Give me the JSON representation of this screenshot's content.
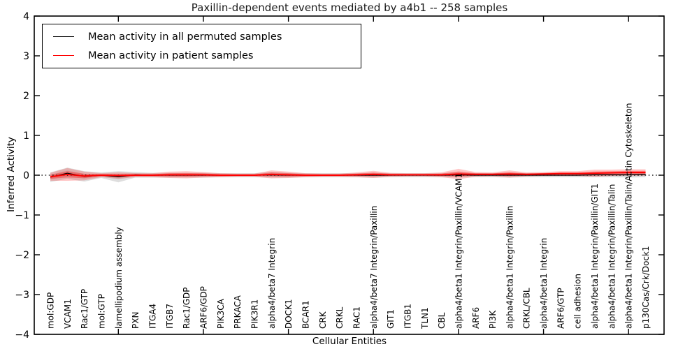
{
  "chart_data": {
    "type": "line",
    "title": "Paxillin-dependent events mediated by a4b1 -- 258 samples",
    "xlabel": "Cellular Entities",
    "ylabel": "Inferred Activity",
    "ylim": [
      -4,
      4
    ],
    "yticks": [
      4,
      3,
      2,
      1,
      0,
      -1,
      -2,
      -3,
      -4
    ],
    "x_major_tick_indices": [
      4,
      9,
      14,
      19,
      24,
      29,
      34
    ],
    "grid": false,
    "legend_position": "upper left",
    "zero_line": {
      "y": 0,
      "style": "dotted",
      "color": "#000000"
    },
    "categories": [
      "mol:GDP",
      "VCAM1",
      "Rac1/GTP",
      "mol:GTP",
      "lamellipodium assembly",
      "PXN",
      "ITGA4",
      "ITGB7",
      "Rac1/GDP",
      "ARF6/GDP",
      "PIK3CA",
      "PRKACA",
      "PIK3R1",
      "alpha4/beta7 Integrin",
      "DOCK1",
      "BCAR1",
      "CRK",
      "CRKL",
      "RAC1",
      "alpha4/beta7 Integrin/Paxillin",
      "GIT1",
      "ITGB1",
      "TLN1",
      "CBL",
      "alpha4/beta1 Integrin/Paxillin/VCAM1",
      "ARF6",
      "PI3K",
      "alpha4/beta1 Integrin/Paxillin",
      "CRKL/CBL",
      "alpha4/beta1 Integrin",
      "ARF6/GTP",
      "cell adhesion",
      "alpha4/beta1 Integrin/Paxillin/GIT1",
      "alpha4/beta1 Integrin/Paxillin/Talin",
      "alpha4/beta1 Integrin/Paxillin/Talin/Actin Cytoskeleton",
      "p130Cas/Crk/Dock1"
    ],
    "series": [
      {
        "name": "Mean activity in all permuted samples",
        "color": "#000000",
        "band_color": "#888888",
        "values": [
          -0.05,
          0.05,
          -0.03,
          0.0,
          -0.04,
          0.01,
          0.0,
          0.0,
          0.0,
          0.0,
          0.0,
          0.0,
          0.0,
          0.01,
          0.0,
          0.0,
          0.0,
          0.0,
          0.0,
          0.0,
          0.0,
          0.0,
          0.0,
          0.0,
          0.01,
          0.0,
          0.0,
          0.0,
          0.0,
          0.0,
          0.0,
          0.0,
          0.01,
          0.01,
          0.01,
          0.02
        ],
        "std": [
          0.12,
          0.14,
          0.13,
          0.07,
          0.14,
          0.07,
          0.06,
          0.06,
          0.06,
          0.06,
          0.05,
          0.05,
          0.05,
          0.07,
          0.06,
          0.05,
          0.05,
          0.05,
          0.05,
          0.06,
          0.05,
          0.05,
          0.05,
          0.05,
          0.06,
          0.05,
          0.05,
          0.06,
          0.05,
          0.05,
          0.05,
          0.05,
          0.06,
          0.06,
          0.07,
          0.07
        ]
      },
      {
        "name": "Mean activity in patient samples",
        "color": "#ff0000",
        "band_color": "#ff0000",
        "values": [
          -0.04,
          0.02,
          -0.02,
          0.0,
          -0.01,
          0.0,
          0.0,
          0.01,
          0.01,
          0.01,
          0.0,
          0.0,
          0.0,
          0.02,
          0.01,
          0.0,
          0.0,
          0.0,
          0.01,
          0.02,
          0.01,
          0.01,
          0.01,
          0.01,
          0.03,
          0.02,
          0.02,
          0.03,
          0.02,
          0.03,
          0.04,
          0.04,
          0.05,
          0.06,
          0.07,
          0.07
        ],
        "std": [
          0.1,
          0.16,
          0.11,
          0.05,
          0.08,
          0.05,
          0.05,
          0.08,
          0.09,
          0.07,
          0.05,
          0.04,
          0.04,
          0.1,
          0.08,
          0.05,
          0.04,
          0.04,
          0.06,
          0.09,
          0.05,
          0.04,
          0.04,
          0.06,
          0.13,
          0.06,
          0.05,
          0.09,
          0.05,
          0.05,
          0.06,
          0.06,
          0.09,
          0.08,
          0.08,
          0.08
        ]
      }
    ]
  }
}
